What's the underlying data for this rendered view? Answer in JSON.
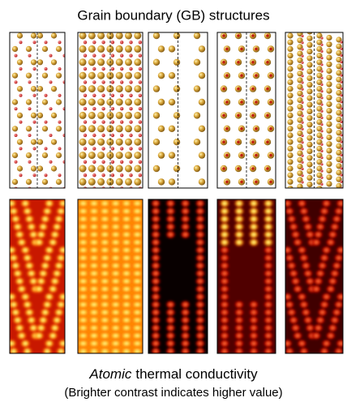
{
  "header": {
    "title": "Grain boundary (GB) structures"
  },
  "caption": {
    "emphasis": "Atomic",
    "text": "thermal conductivity",
    "note": "(Brighter contrast indicates higher value)"
  }
}
